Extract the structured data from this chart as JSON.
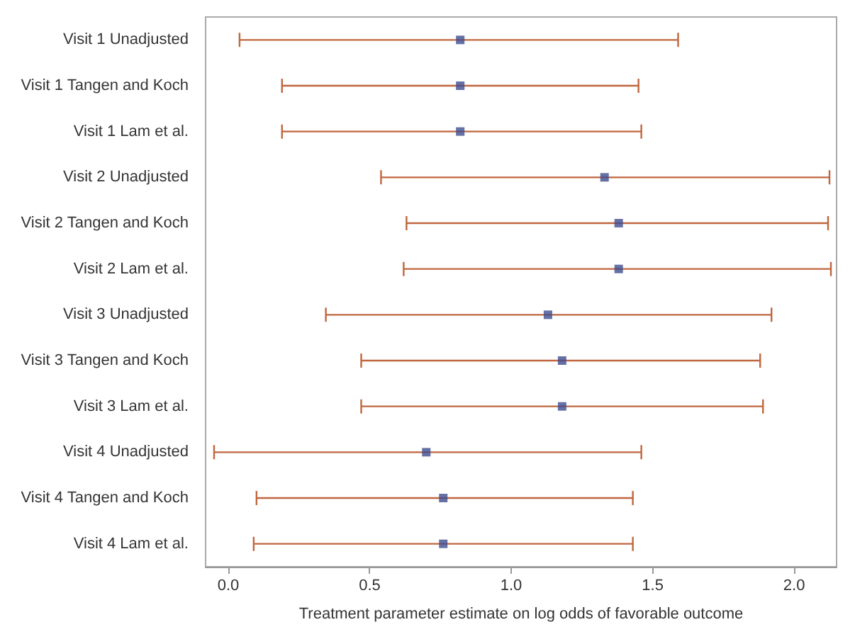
{
  "chart_data": {
    "type": "scatter",
    "orientation": "horizontal",
    "xlabel": "Treatment parameter estimate on log odds of favorable outcome",
    "categories": [
      "Visit 1 Unadjusted",
      "Visit 1 Tangen and Koch",
      "Visit 1 Lam et al.",
      "Visit 2 Unadjusted",
      "Visit 2 Tangen and Koch",
      "Visit 2 Lam et al.",
      "Visit 3 Unadjusted",
      "Visit 3 Tangen and Koch",
      "Visit 3 Lam et al.",
      "Visit 4 Unadjusted",
      "Visit 4 Tangen and Koch",
      "Visit 4 Lam et al."
    ],
    "values": [
      0.82,
      0.82,
      0.82,
      1.33,
      1.38,
      1.38,
      1.13,
      1.18,
      1.18,
      0.7,
      0.76,
      0.76
    ],
    "errors": [
      [
        0.04,
        1.59
      ],
      [
        0.19,
        1.45
      ],
      [
        0.19,
        1.46
      ],
      [
        0.54,
        2.125
      ],
      [
        0.63,
        2.12
      ],
      [
        0.62,
        2.13
      ],
      [
        0.345,
        1.92
      ],
      [
        0.47,
        1.88
      ],
      [
        0.47,
        1.89
      ],
      [
        -0.05,
        1.46
      ],
      [
        0.1,
        1.43
      ],
      [
        0.09,
        1.43
      ]
    ],
    "color": "#3f4c8e",
    "marker": "square",
    "xlim": [
      -0.08,
      2.15
    ],
    "xticks": [
      {
        "value": 0,
        "label": "0.0"
      },
      {
        "value": 0.5,
        "label": "0.5"
      },
      {
        "value": 1,
        "label": "1.0"
      },
      {
        "value": 1.5,
        "label": "1.5"
      },
      {
        "value": 2,
        "label": "2.0"
      }
    ],
    "grid": false
  }
}
